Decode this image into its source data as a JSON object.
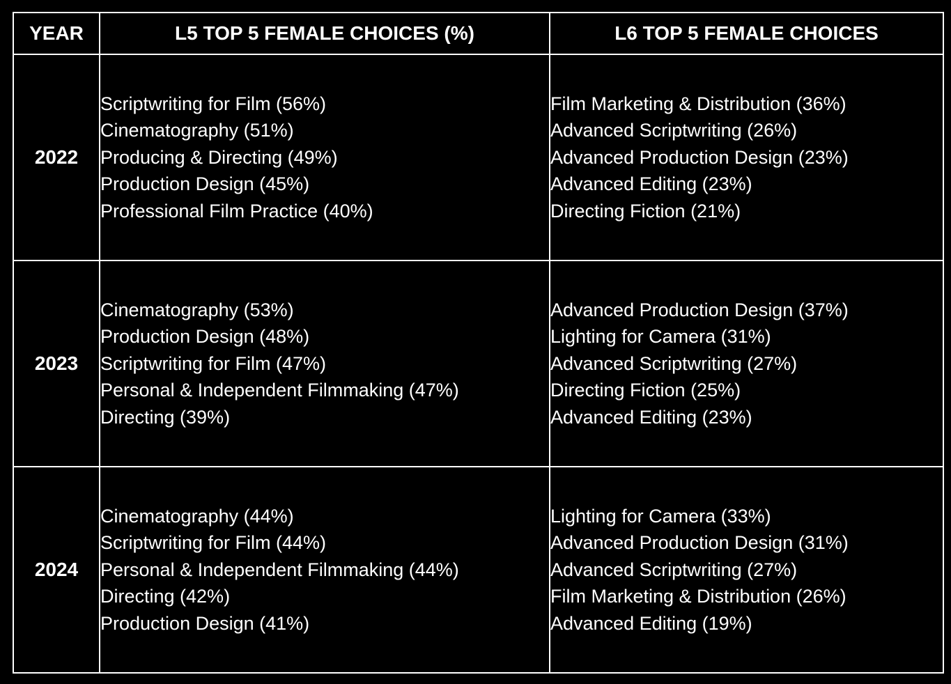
{
  "headers": {
    "year": "YEAR",
    "l5": "L5 TOP 5 FEMALE CHOICES (%)",
    "l6": "L6 TOP 5 FEMALE CHOICES"
  },
  "rows": [
    {
      "year": "2022",
      "l5": [
        "Scriptwriting for Film (56%)",
        "Cinematography (51%)",
        "Producing & Directing (49%)",
        "Production Design (45%)",
        "Professional Film Practice (40%)"
      ],
      "l6": [
        "Film Marketing & Distribution (36%)",
        "Advanced Scriptwriting (26%)",
        "Advanced Production Design (23%)",
        "Advanced Editing (23%)",
        "Directing Fiction (21%)"
      ]
    },
    {
      "year": "2023",
      "l5": [
        "Cinematography (53%)",
        "Production Design (48%)",
        "Scriptwriting for Film (47%)",
        "Personal & Independent Filmmaking (47%)",
        "Directing (39%)"
      ],
      "l6": [
        "Advanced Production Design (37%)",
        "Lighting for Camera (31%)",
        "Advanced Scriptwriting (27%)",
        "Directing Fiction (25%)",
        "Advanced Editing (23%)"
      ]
    },
    {
      "year": "2024",
      "l5": [
        "Cinematography (44%)",
        "Scriptwriting for Film (44%)",
        "Personal & Independent Filmmaking (44%)",
        "Directing (42%)",
        "Production Design (41%)"
      ],
      "l6": [
        "Lighting for Camera (33%)",
        "Advanced Production Design (31%)",
        "Advanced Scriptwriting (27%)",
        "Film Marketing & Distribution (26%)",
        "Advanced Editing (19%)"
      ]
    }
  ],
  "colors": {
    "background": "#000000",
    "text": "#ffffff",
    "border": "#ffffff"
  }
}
